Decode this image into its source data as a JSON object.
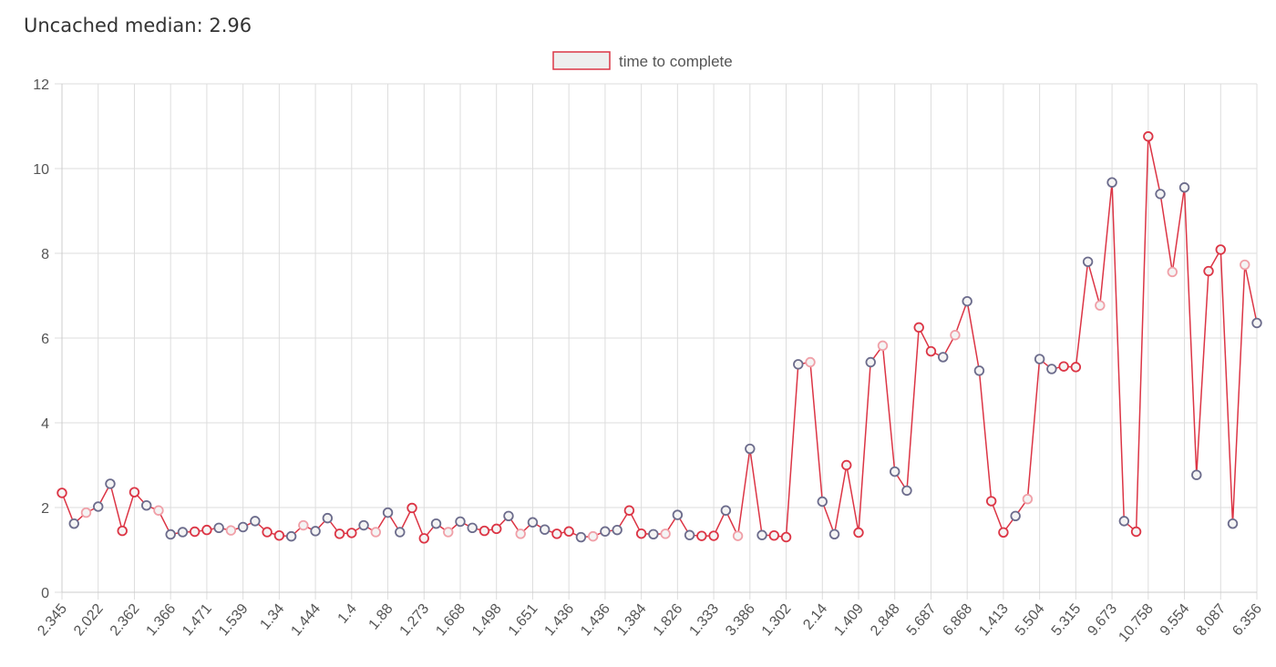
{
  "header": {
    "title": "Uncached median: 2.96"
  },
  "chart_data": {
    "type": "line",
    "legend": {
      "label": "time to complete",
      "position": "top",
      "swatch_fill": "#eeeeee",
      "swatch_border": "#dc3545"
    },
    "colors": {
      "line": "#dc3545",
      "point_red": "#dc3545",
      "point_pink": "#f0a0a8",
      "point_gray": "#6c6c8c",
      "grid": "#dddddd",
      "axis_text": "#555555"
    },
    "ylim": [
      0,
      12
    ],
    "yticks": [
      0,
      2,
      4,
      6,
      8,
      10,
      12
    ],
    "grid": true,
    "xtick_labels": [
      "2.345",
      "2.022",
      "2.362",
      "1.366",
      "1.471",
      "1.539",
      "1.34",
      "1.444",
      "1.4",
      "1.88",
      "1.273",
      "1.668",
      "1.498",
      "1.651",
      "1.436",
      "1.436",
      "1.384",
      "1.826",
      "1.333",
      "3.386",
      "1.302",
      "2.14",
      "1.409",
      "2.848",
      "5.687",
      "6.868",
      "1.413",
      "5.504",
      "5.315",
      "9.673",
      "10.758",
      "9.554",
      "8.087",
      "6.356"
    ],
    "series": [
      {
        "values": [
          2.345,
          1.62,
          1.88,
          2.022,
          2.56,
          1.45,
          2.362,
          2.05,
          1.93,
          1.366,
          1.42,
          1.43,
          1.471,
          1.52,
          1.46,
          1.539,
          1.68,
          1.42,
          1.34,
          1.32,
          1.58,
          1.444,
          1.75,
          1.38,
          1.4,
          1.58,
          1.42,
          1.88,
          1.42,
          1.99,
          1.273,
          1.62,
          1.42,
          1.668,
          1.52,
          1.45,
          1.498,
          1.8,
          1.38,
          1.651,
          1.48,
          1.38,
          1.436,
          1.3,
          1.32,
          1.436,
          1.47,
          1.93,
          1.384,
          1.37,
          1.38,
          1.826,
          1.35,
          1.33,
          1.333,
          1.93,
          1.33,
          3.386,
          1.35,
          1.34,
          1.302,
          5.38,
          5.43,
          2.14,
          1.37,
          3.0,
          1.409,
          5.43,
          5.82,
          2.848,
          2.4,
          6.25,
          5.687,
          5.55,
          6.07,
          6.868,
          5.23,
          2.15,
          1.413,
          1.8,
          2.2,
          5.504,
          5.27,
          5.33,
          5.315,
          7.8,
          6.77,
          9.673,
          1.68,
          1.43,
          10.758,
          9.4,
          7.56,
          9.554,
          2.77,
          7.58,
          8.087,
          1.62,
          7.73,
          6.356
        ],
        "point_colors": [
          "red",
          "gray",
          "pink",
          "gray",
          "gray",
          "red",
          "red",
          "gray",
          "pink",
          "gray",
          "gray",
          "red",
          "red",
          "gray",
          "pink",
          "gray",
          "gray",
          "red",
          "red",
          "gray",
          "pink",
          "gray",
          "gray",
          "red",
          "red",
          "gray",
          "pink",
          "gray",
          "gray",
          "red",
          "red",
          "gray",
          "pink",
          "gray",
          "gray",
          "red",
          "red",
          "gray",
          "pink",
          "gray",
          "gray",
          "red",
          "red",
          "gray",
          "pink",
          "gray",
          "gray",
          "red",
          "red",
          "gray",
          "pink",
          "gray",
          "gray",
          "red",
          "red",
          "gray",
          "pink",
          "gray",
          "gray",
          "red",
          "red",
          "gray",
          "pink",
          "gray",
          "gray",
          "red",
          "red",
          "gray",
          "pink",
          "gray",
          "gray",
          "red",
          "red",
          "gray",
          "pink",
          "gray",
          "gray",
          "red",
          "red",
          "gray",
          "pink",
          "gray",
          "gray",
          "red",
          "red",
          "gray",
          "pink",
          "gray",
          "gray",
          "red",
          "red",
          "gray",
          "pink",
          "gray",
          "gray",
          "red",
          "red",
          "gray",
          "pink",
          "gray"
        ]
      }
    ]
  }
}
